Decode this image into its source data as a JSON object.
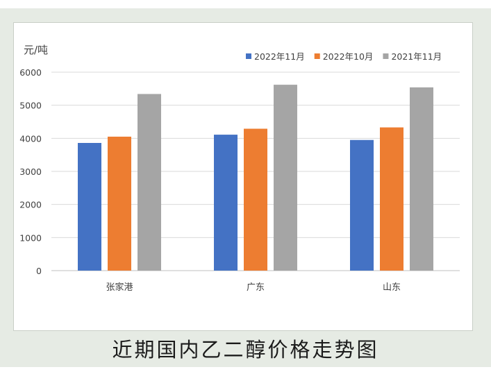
{
  "caption": "近期国内乙二醇价格走势图",
  "chart_data": {
    "type": "bar",
    "title": "",
    "ylabel": "元/吨",
    "xlabel": "",
    "categories": [
      "张家港",
      "广东",
      "山东"
    ],
    "series": [
      {
        "name": "2022年11月",
        "color": "#4472c4",
        "values": [
          3860,
          4110,
          3950
        ]
      },
      {
        "name": "2022年10月",
        "color": "#ed7d31",
        "values": [
          4050,
          4290,
          4330
        ]
      },
      {
        "name": "2021年11月",
        "color": "#a5a5a5",
        "values": [
          5340,
          5620,
          5540
        ]
      }
    ],
    "ylim": [
      0,
      6000
    ],
    "yticks": [
      0,
      1000,
      2000,
      3000,
      4000,
      5000,
      6000
    ],
    "grid": true,
    "legend_position": "top-right"
  }
}
